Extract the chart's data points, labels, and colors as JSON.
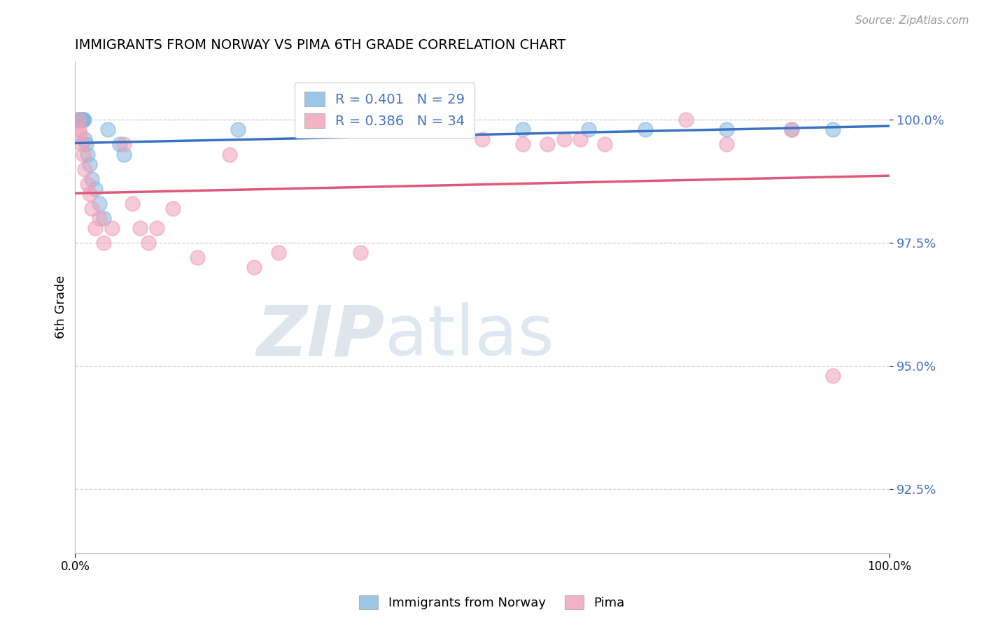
{
  "title": "IMMIGRANTS FROM NORWAY VS PIMA 6TH GRADE CORRELATION CHART",
  "source_text": "Source: ZipAtlas.com",
  "ylabel": "6th Grade",
  "blue_label": "Immigrants from Norway",
  "pink_label": "Pima",
  "blue_R": 0.401,
  "blue_N": 29,
  "pink_R": 0.386,
  "pink_N": 34,
  "blue_color": "#85b8e0",
  "pink_color": "#f0a0b8",
  "blue_line_color": "#3a72c4",
  "pink_line_color": "#e05878",
  "watermark_zip": "ZIP",
  "watermark_atlas": "atlas",
  "ytick_values": [
    92.5,
    95.0,
    97.5,
    100.0
  ],
  "ymin": 91.2,
  "ymax": 101.2,
  "xmin": 0.0,
  "xmax": 100.0,
  "blue_x": [
    0.3,
    0.4,
    0.5,
    0.5,
    0.6,
    0.7,
    0.8,
    0.9,
    1.0,
    1.1,
    1.2,
    1.3,
    1.5,
    1.8,
    2.0,
    2.5,
    3.0,
    3.5,
    4.0,
    5.5,
    6.0,
    20.0,
    40.0,
    55.0,
    63.0,
    70.0,
    80.0,
    88.0,
    93.0
  ],
  "blue_y": [
    100.0,
    100.0,
    100.0,
    100.0,
    100.0,
    100.0,
    100.0,
    100.0,
    100.0,
    100.0,
    99.6,
    99.5,
    99.3,
    99.1,
    98.8,
    98.6,
    98.3,
    98.0,
    99.8,
    99.5,
    99.3,
    99.8,
    99.8,
    99.8,
    99.8,
    99.8,
    99.8,
    99.8,
    99.8
  ],
  "pink_x": [
    0.4,
    0.5,
    0.6,
    0.8,
    1.0,
    1.2,
    1.5,
    1.8,
    2.0,
    2.5,
    3.0,
    3.5,
    4.5,
    6.0,
    7.0,
    8.0,
    9.0,
    10.0,
    12.0,
    15.0,
    19.0,
    22.0,
    25.0,
    35.0,
    50.0,
    55.0,
    58.0,
    60.0,
    62.0,
    65.0,
    75.0,
    80.0,
    88.0,
    93.0
  ],
  "pink_y": [
    100.0,
    99.8,
    99.7,
    99.5,
    99.3,
    99.0,
    98.7,
    98.5,
    98.2,
    97.8,
    98.0,
    97.5,
    97.8,
    99.5,
    98.3,
    97.8,
    97.5,
    97.8,
    98.2,
    97.2,
    99.3,
    97.0,
    97.3,
    97.3,
    99.6,
    99.5,
    99.5,
    99.6,
    99.6,
    99.5,
    100.0,
    99.5,
    99.8,
    94.8
  ]
}
